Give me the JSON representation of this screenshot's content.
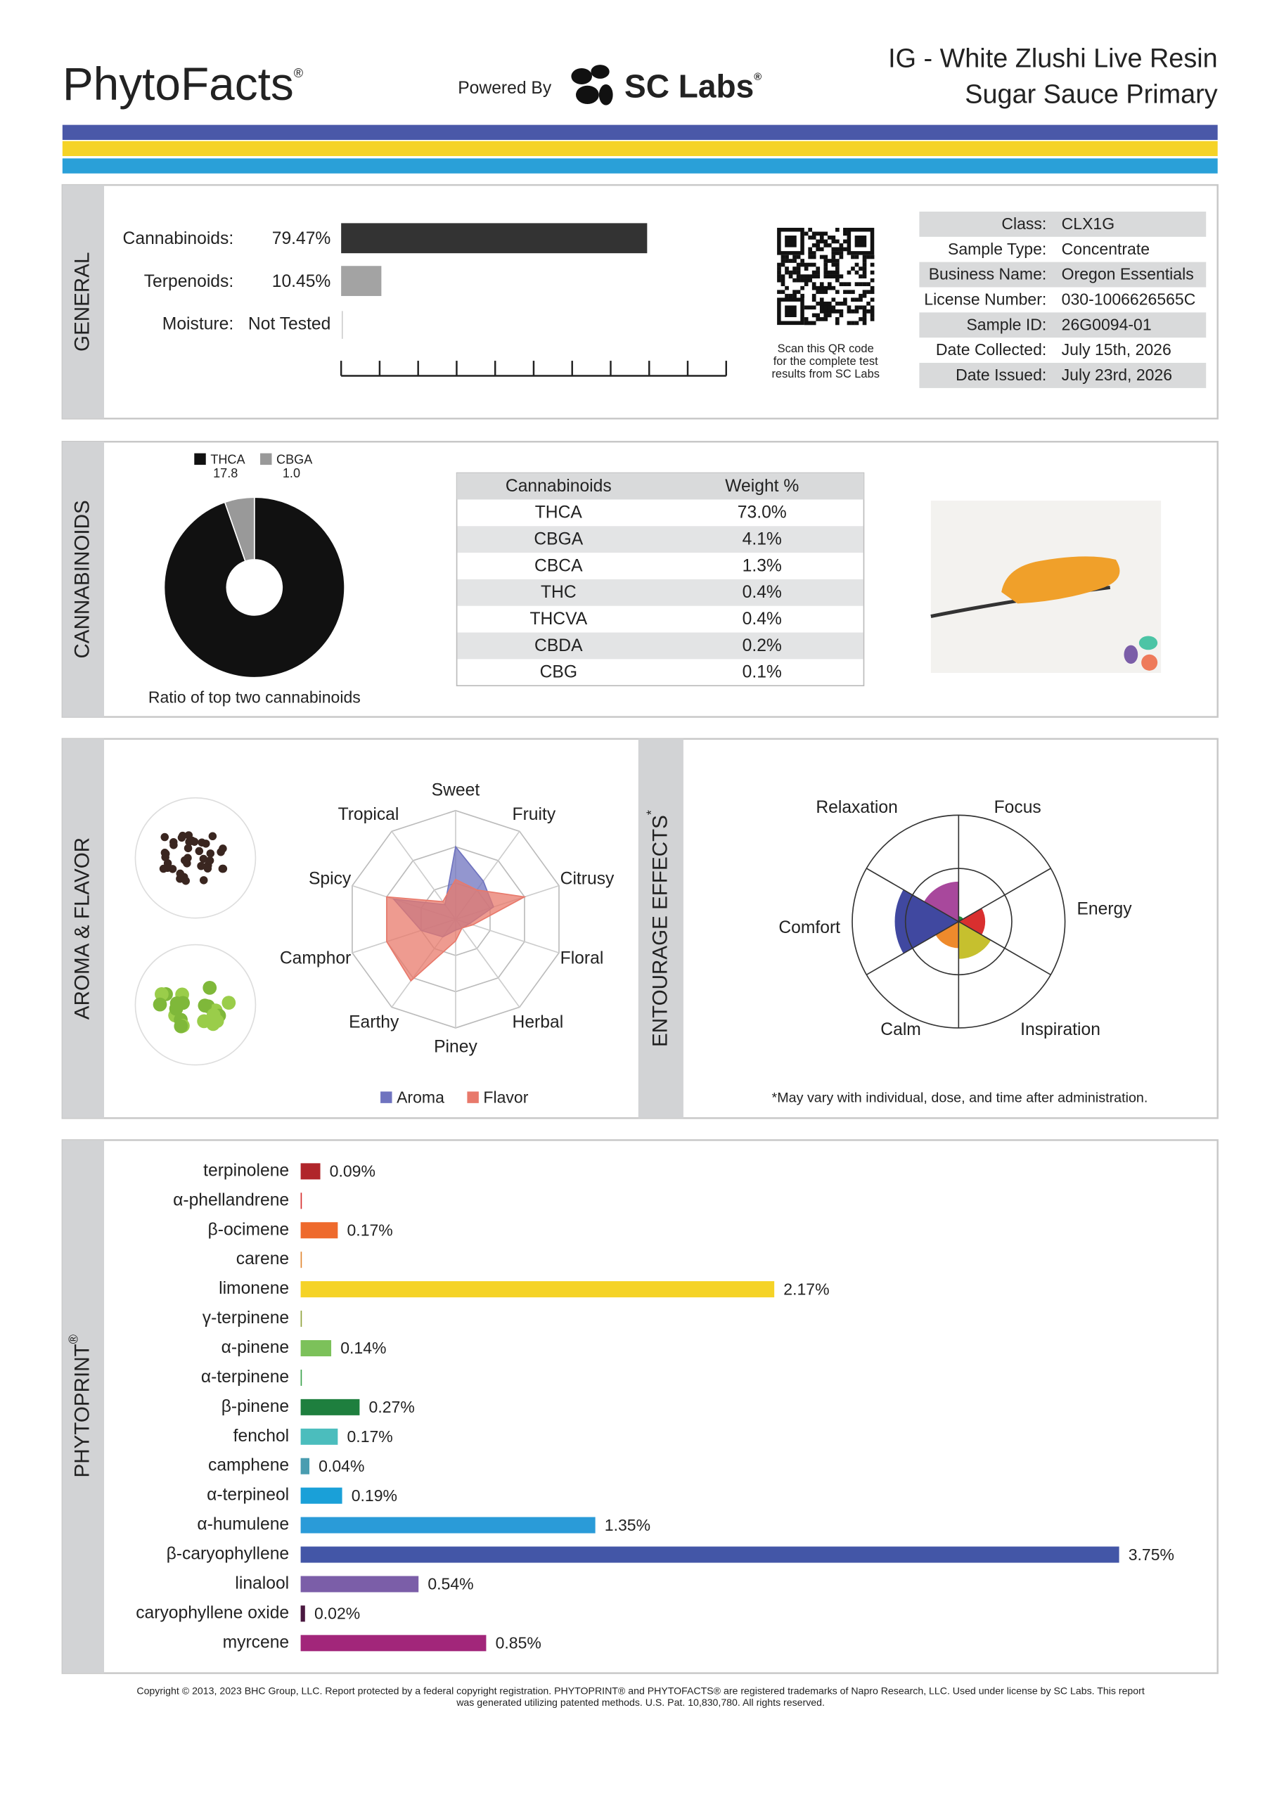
{
  "header": {
    "brand": "PhytoFacts",
    "brand_mark": "®",
    "powered_by": "Powered By",
    "lab_name": "SC Labs",
    "lab_mark": "®",
    "product_name": "IG - White Zlushi Live Resin",
    "product_type": "Sugar Sauce Primary"
  },
  "general": {
    "section_title": "GENERAL",
    "potency": {
      "xlim": [
        0,
        100
      ],
      "xticks": [
        0,
        10,
        20,
        30,
        40,
        50,
        60,
        70,
        80,
        90,
        100
      ],
      "bars": [
        {
          "label": "Cannabinoids:",
          "value": 79.47,
          "value_label": "79.47%",
          "color": "#333333"
        },
        {
          "label": "Terpenoids:",
          "value": 10.45,
          "value_label": "10.45%",
          "color": "#a3a3a3"
        }
      ],
      "moisture": {
        "label": "Moisture:",
        "value": "Not Tested"
      }
    },
    "qr_caption": [
      "Scan this QR code",
      "for the complete test",
      "results from SC Labs"
    ],
    "details": [
      {
        "label": "Class:",
        "value": "CLX1G"
      },
      {
        "label": "Sample Type:",
        "value": "Concentrate"
      },
      {
        "label": "Business Name:",
        "value": "Oregon Essentials"
      },
      {
        "label": "License Number:",
        "value": "030-1006626565C"
      },
      {
        "label": "Sample ID:",
        "value": "26G0094-01"
      },
      {
        "label": "Date Collected:",
        "value": "July 15th, 2026"
      },
      {
        "label": "Date Issued:",
        "value": "July 23rd, 2026"
      }
    ]
  },
  "cannabinoids": {
    "section_title": "CANNABINOIDS",
    "chart_data": {
      "type": "pie",
      "categories": [
        "THCA",
        "CBGA"
      ],
      "values": [
        17.8,
        1.0
      ],
      "value_labels": [
        "17.8",
        "1.0"
      ],
      "colors": [
        "#111111",
        "#999999"
      ]
    },
    "caption": "Ratio of top two cannabinoids",
    "table": {
      "columns": [
        "Cannabinoids",
        "Weight %"
      ],
      "rows": [
        [
          "THCA",
          "73.0%"
        ],
        [
          "CBGA",
          "4.1%"
        ],
        [
          "CBCA",
          "1.3%"
        ],
        [
          "THC",
          "0.4%"
        ],
        [
          "THCVA",
          "0.4%"
        ],
        [
          "CBDA",
          "0.2%"
        ],
        [
          "CBG",
          "0.1%"
        ]
      ]
    }
  },
  "aroma": {
    "section_title": "AROMA & FLAVOR",
    "chart_data": {
      "type": "radar",
      "categories": [
        "Sweet",
        "Fruity",
        "Citrusy",
        "Floral",
        "Herbal",
        "Piney",
        "Earthy",
        "Camphor",
        "Spicy",
        "Tropical"
      ],
      "rlim": [
        0,
        3
      ],
      "rticks": [
        1,
        2,
        3
      ],
      "series": [
        {
          "name": "Aroma",
          "color": "#6f73bf",
          "values": [
            2.0,
            1.3,
            1.1,
            0.4,
            0.3,
            0.3,
            0.6,
            1.0,
            1.8,
            0.5
          ]
        },
        {
          "name": "Flavor",
          "color": "#e8796b",
          "values": [
            1.1,
            1.0,
            2.0,
            0.5,
            0.3,
            0.6,
            2.1,
            2.0,
            2.0,
            0.6
          ]
        }
      ]
    }
  },
  "entourage": {
    "section_title": "ENTOURAGE EFFECTS",
    "title_mark": "*",
    "chart_data": {
      "type": "rose",
      "categories": [
        "Focus",
        "Energy",
        "Inspiration",
        "Calm",
        "Comfort",
        "Relaxation"
      ],
      "colors": [
        "#1f8a3a",
        "#d92f2f",
        "#c6c02e",
        "#ee8a2c",
        "#4048a0",
        "#a8489c"
      ],
      "values": [
        0.1,
        0.5,
        0.7,
        0.5,
        1.2,
        0.75
      ],
      "rlim": [
        0,
        2
      ],
      "rticks": [
        1,
        2
      ]
    },
    "footnote": "*May vary with individual, dose, and time after administration."
  },
  "phytoprint": {
    "section_title": "PHYTOPRINT",
    "section_mark": "®",
    "chart_data": {
      "type": "bar",
      "orientation": "horizontal",
      "xlim": [
        0,
        4
      ],
      "categories": [
        "terpinolene",
        "α-phellandrene",
        "β-ocimene",
        "carene",
        "limonene",
        "γ-terpinene",
        "α-pinene",
        "α-terpinene",
        "β-pinene",
        "fenchol",
        "camphene",
        "α-terpineol",
        "α-humulene",
        "β-caryophyllene",
        "linalool",
        "caryophyllene oxide",
        "myrcene"
      ],
      "colors": [
        "#b0252a",
        "#d62b2b",
        "#ee6a2d",
        "#e0852f",
        "#f5d327",
        "#8fa23a",
        "#7cc15a",
        "#3aa24a",
        "#1e7f3e",
        "#4bbdbd",
        "#4a9db0",
        "#1aa0d8",
        "#2a9bd8",
        "#4356a7",
        "#7b5ea8",
        "#4a1840",
        "#a2267a"
      ],
      "values": [
        0.09,
        0.005,
        0.17,
        0.005,
        2.17,
        0.005,
        0.14,
        0.005,
        0.27,
        0.17,
        0.04,
        0.19,
        1.35,
        3.75,
        0.54,
        0.02,
        0.85
      ],
      "value_labels": [
        "0.09%",
        null,
        "0.17%",
        null,
        "2.17%",
        null,
        "0.14%",
        null,
        "0.27%",
        "0.17%",
        "0.04%",
        "0.19%",
        "1.35%",
        "3.75%",
        "0.54%",
        "0.02%",
        "0.85%"
      ]
    }
  },
  "footer": {
    "copyright": [
      "Copyright © 2013, 2023 BHC Group, LLC. Report protected by a federal copyright registration. PHYTOPRINT® and PHYTOFACTS® are registered trademarks of Napro Research, LLC. Used under license by SC Labs. This report",
      "was generated utilizing patented methods. U.S. Pat. 10,830,780. All rights reserved."
    ]
  }
}
